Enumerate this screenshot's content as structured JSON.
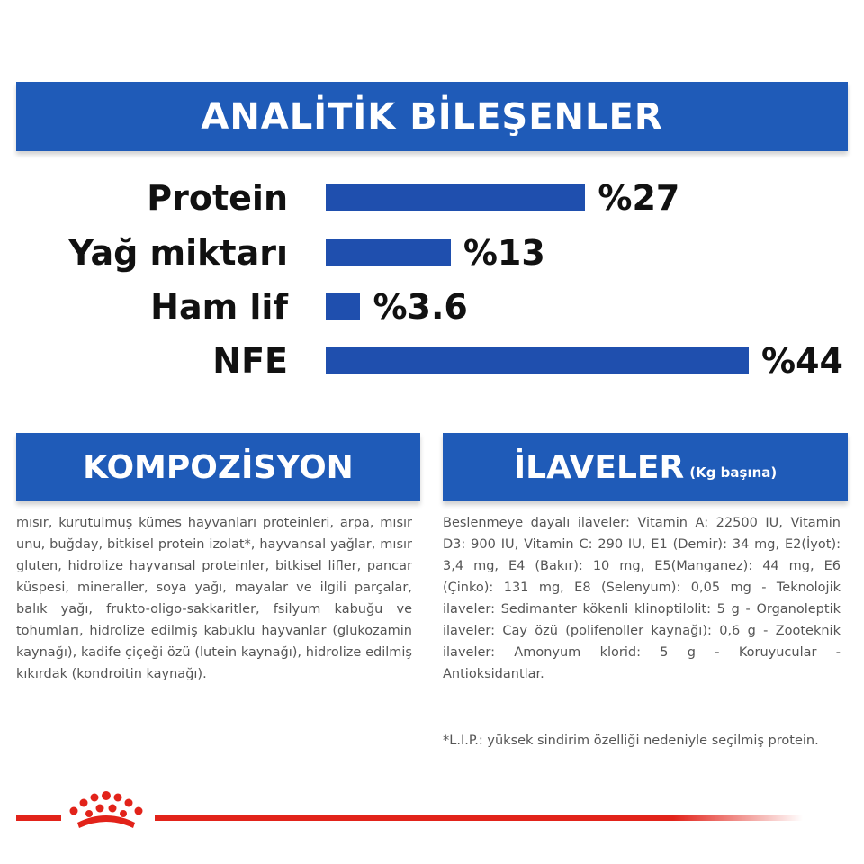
{
  "header": {
    "title": "ANALİTİK BİLEŞENLER"
  },
  "chart_data": {
    "type": "bar",
    "orientation": "horizontal",
    "categories": [
      "Protein",
      "Yağ miktarı",
      "Ham lif",
      "NFE"
    ],
    "values": [
      27,
      13,
      3.6,
      44
    ],
    "value_labels": [
      "%27",
      "%13",
      "%3.6",
      "%44"
    ],
    "unit": "%",
    "xlim": [
      0,
      44
    ],
    "grid": false,
    "bar_color": "#1f4fae"
  },
  "composition": {
    "title": "KOMPOZİSYON",
    "text": "mısır, kurutulmuş kümes hayvanları proteinleri, arpa, mısır unu, buğday, bitkisel protein izolat*, hayvansal yağlar, mısır gluten, hidrolize hayvansal proteinler, bitkisel lifler, pancar küspesi, mineraller, soya yağı, mayalar ve ilgili parçalar, balık yağı, frukto-oligo-sakkaritler, fsilyum kabuğu ve tohumları, hidrolize edilmiş kabuklu hayvanlar (glukozamin kaynağı), kadife çiçeği özü (lutein kaynağı), hidrolize edilmiş kıkırdak (kondroitin kaynağı)."
  },
  "additives": {
    "title": "İLAVELER",
    "subtitle": "(Kg başına)",
    "text": "Beslenmeye dayalı ilaveler: Vitamin A: 22500 IU, Vitamin D3: 900 IU, Vitamin C: 290 IU, E1 (Demir): 34 mg, E2(İyot): 3,4 mg, E4 (Bakır): 10 mg, E5(Manganez): 44 mg, E6 (Çinko): 131 mg, E8 (Selenyum): 0,05 mg - Teknolojik ilaveler: Sedimanter kökenli klinoptilolit: 5 g - Organoleptik ilaveler: Cay özü (polifenoller kaynağı): 0,6 g - Zooteknik ilaveler: Amonyum klorid: 5 g - Koruyucular - Antioksidantlar.",
    "footnote": "*L.I.P.: yüksek sindirim özelliği nedeniyle seçilmiş protein."
  },
  "colors": {
    "brand_blue": "#1f5bb8",
    "brand_red": "#e2231a"
  },
  "logo": {
    "icon": "royal-canin-crown-logo"
  }
}
